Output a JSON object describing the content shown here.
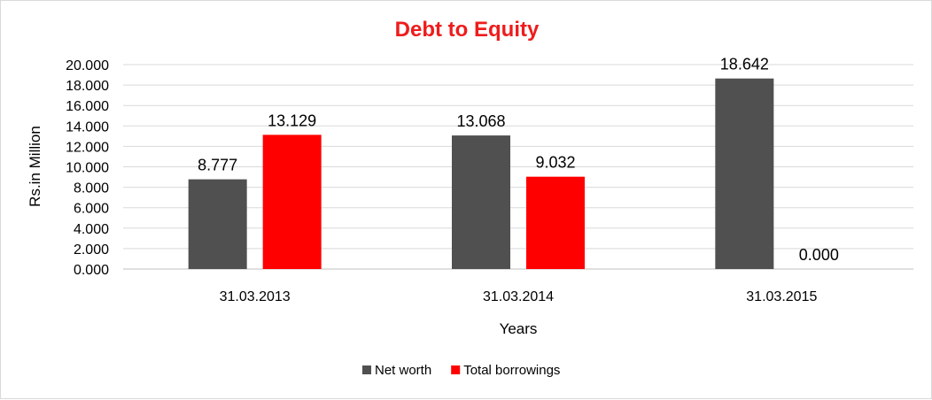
{
  "chart_data": {
    "type": "bar",
    "title": "Debt to Equity",
    "xlabel": "Years",
    "ylabel": "Rs.in Million",
    "categories": [
      "31.03.2013",
      "31.03.2014",
      "31.03.2015"
    ],
    "series": [
      {
        "name": "Net worth",
        "values": [
          8.777,
          13.068,
          18.642
        ],
        "color": "#505050"
      },
      {
        "name": "Total borrowings",
        "values": [
          13.129,
          9.032,
          0.0
        ],
        "color": "#ff0000"
      }
    ],
    "data_labels": [
      [
        "8.777",
        "13.068",
        "18.642"
      ],
      [
        "13.129",
        "9.032",
        "0.000"
      ]
    ],
    "ylim": [
      0,
      20
    ],
    "yticks": [
      "0.000",
      "2.000",
      "4.000",
      "6.000",
      "8.000",
      "10.000",
      "12.000",
      "14.000",
      "16.000",
      "18.000",
      "20.000"
    ],
    "grid": true,
    "legend_position": "bottom",
    "title_color": "#ee1c1c"
  }
}
